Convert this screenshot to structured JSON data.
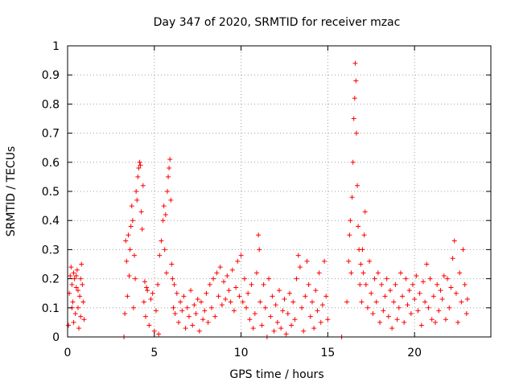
{
  "chart_data": {
    "type": "scatter",
    "title": "Day 347 of 2020, SRMTID for receiver mzac",
    "xlabel": "GPS time / hours",
    "ylabel": "SRMTID / TECUs",
    "xlim": [
      0,
      24.4
    ],
    "ylim": [
      0,
      1
    ],
    "x_ticks": [
      0,
      5,
      10,
      15,
      20
    ],
    "y_ticks": [
      0,
      0.1,
      0.2,
      0.3,
      0.4,
      0.5,
      0.6,
      0.7,
      0.8,
      0.9,
      1
    ],
    "x_tick_labels": [
      "0",
      "5",
      "10",
      "15",
      "20"
    ],
    "y_tick_labels": [
      "0",
      "0.1",
      "0.2",
      "0.3",
      "0.4",
      "0.5",
      "0.6",
      "0.7",
      "0.8",
      "0.9",
      "1"
    ],
    "grid": true,
    "marker": "+",
    "color": "#ff0000",
    "series": [
      {
        "name": "SRMTID",
        "points": [
          [
            0.05,
            0.04
          ],
          [
            0.1,
            0.15
          ],
          [
            0.15,
            0.21
          ],
          [
            0.2,
            0.24
          ],
          [
            0.25,
            0.18
          ],
          [
            0.3,
            0.12
          ],
          [
            0.35,
            0.22
          ],
          [
            0.4,
            0.2
          ],
          [
            0.45,
            0.08
          ],
          [
            0.5,
            0.17
          ],
          [
            0.55,
            0.23
          ],
          [
            0.6,
            0.1
          ],
          [
            0.65,
            0.03
          ],
          [
            0.7,
            0.14
          ],
          [
            0.75,
            0.2
          ],
          [
            0.8,
            0.25
          ],
          [
            0.85,
            0.18
          ],
          [
            0.9,
            0.12
          ],
          [
            0.95,
            0.06
          ],
          [
            0.25,
            0.1
          ],
          [
            0.35,
            0.05
          ],
          [
            0.5,
            0.21
          ],
          [
            0.6,
            0.16
          ],
          [
            0.75,
            0.07
          ],
          [
            3.25,
            0.0
          ],
          [
            3.3,
            0.08
          ],
          [
            3.35,
            0.33
          ],
          [
            3.4,
            0.26
          ],
          [
            3.45,
            0.14
          ],
          [
            3.5,
            0.35
          ],
          [
            3.55,
            0.21
          ],
          [
            3.6,
            0.3
          ],
          [
            3.65,
            0.38
          ],
          [
            3.7,
            0.45
          ],
          [
            3.75,
            0.4
          ],
          [
            3.8,
            0.1
          ],
          [
            3.85,
            0.28
          ],
          [
            3.9,
            0.2
          ],
          [
            3.95,
            0.5
          ],
          [
            4.0,
            0.47
          ],
          [
            4.05,
            0.55
          ],
          [
            4.1,
            0.58
          ],
          [
            4.15,
            0.6
          ],
          [
            4.2,
            0.59
          ],
          [
            4.25,
            0.43
          ],
          [
            4.3,
            0.37
          ],
          [
            4.35,
            0.52
          ],
          [
            4.4,
            0.12
          ],
          [
            4.45,
            0.19
          ],
          [
            4.5,
            0.07
          ],
          [
            4.55,
            0.17
          ],
          [
            4.6,
            0.16
          ],
          [
            4.7,
            0.04
          ],
          [
            4.8,
            0.13
          ],
          [
            4.9,
            0.15
          ],
          [
            5.0,
            0.02
          ],
          [
            5.1,
            0.09
          ],
          [
            5.2,
            0.18
          ],
          [
            5.25,
            0.01
          ],
          [
            5.3,
            0.28
          ],
          [
            5.4,
            0.33
          ],
          [
            5.5,
            0.4
          ],
          [
            5.55,
            0.45
          ],
          [
            5.6,
            0.3
          ],
          [
            5.65,
            0.42
          ],
          [
            5.7,
            0.22
          ],
          [
            5.75,
            0.5
          ],
          [
            5.8,
            0.55
          ],
          [
            5.85,
            0.58
          ],
          [
            5.9,
            0.61
          ],
          [
            5.95,
            0.47
          ],
          [
            6.0,
            0.25
          ],
          [
            6.05,
            0.2
          ],
          [
            6.1,
            0.1
          ],
          [
            6.15,
            0.18
          ],
          [
            6.2,
            0.08
          ],
          [
            6.3,
            0.15
          ],
          [
            6.4,
            0.05
          ],
          [
            6.5,
            0.12
          ],
          [
            6.6,
            0.09
          ],
          [
            6.7,
            0.14
          ],
          [
            6.8,
            0.03
          ],
          [
            6.9,
            0.1
          ],
          [
            7.0,
            0.07
          ],
          [
            7.1,
            0.16
          ],
          [
            7.2,
            0.04
          ],
          [
            7.3,
            0.11
          ],
          [
            7.4,
            0.08
          ],
          [
            7.5,
            0.13
          ],
          [
            7.6,
            0.02
          ],
          [
            7.7,
            0.12
          ],
          [
            7.8,
            0.06
          ],
          [
            7.9,
            0.09
          ],
          [
            8.0,
            0.15
          ],
          [
            8.1,
            0.05
          ],
          [
            8.2,
            0.18
          ],
          [
            8.3,
            0.1
          ],
          [
            8.4,
            0.2
          ],
          [
            8.5,
            0.07
          ],
          [
            8.6,
            0.22
          ],
          [
            8.7,
            0.14
          ],
          [
            8.8,
            0.24
          ],
          [
            8.9,
            0.11
          ],
          [
            9.0,
            0.19
          ],
          [
            9.1,
            0.13
          ],
          [
            9.2,
            0.21
          ],
          [
            9.3,
            0.16
          ],
          [
            9.4,
            0.12
          ],
          [
            9.5,
            0.23
          ],
          [
            9.6,
            0.09
          ],
          [
            9.7,
            0.17
          ],
          [
            9.8,
            0.26
          ],
          [
            9.9,
            0.14
          ],
          [
            10.0,
            0.28
          ],
          [
            10.1,
            0.12
          ],
          [
            10.2,
            0.2
          ],
          [
            10.3,
            0.1
          ],
          [
            10.4,
            0.15
          ],
          [
            10.5,
            0.06
          ],
          [
            10.6,
            0.18
          ],
          [
            10.7,
            0.03
          ],
          [
            10.8,
            0.08
          ],
          [
            10.9,
            0.22
          ],
          [
            11.0,
            0.35
          ],
          [
            11.05,
            0.3
          ],
          [
            11.1,
            0.12
          ],
          [
            11.2,
            0.04
          ],
          [
            11.3,
            0.18
          ],
          [
            11.4,
            0.1
          ],
          [
            11.5,
            0.0
          ],
          [
            11.6,
            0.2
          ],
          [
            11.7,
            0.07
          ],
          [
            11.8,
            0.14
          ],
          [
            11.9,
            0.02
          ],
          [
            12.0,
            0.11
          ],
          [
            12.1,
            0.05
          ],
          [
            12.2,
            0.16
          ],
          [
            12.3,
            0.03
          ],
          [
            12.4,
            0.09
          ],
          [
            12.5,
            0.13
          ],
          [
            12.6,
            0.01
          ],
          [
            12.7,
            0.08
          ],
          [
            12.8,
            0.15
          ],
          [
            12.9,
            0.04
          ],
          [
            13.0,
            0.12
          ],
          [
            13.1,
            0.06
          ],
          [
            13.2,
            0.2
          ],
          [
            13.3,
            0.28
          ],
          [
            13.4,
            0.24
          ],
          [
            13.5,
            0.1
          ],
          [
            13.6,
            0.02
          ],
          [
            13.7,
            0.14
          ],
          [
            13.8,
            0.26
          ],
          [
            13.9,
            0.18
          ],
          [
            14.0,
            0.07
          ],
          [
            14.1,
            0.12
          ],
          [
            14.2,
            0.03
          ],
          [
            14.3,
            0.16
          ],
          [
            14.4,
            0.09
          ],
          [
            14.5,
            0.22
          ],
          [
            14.6,
            0.05
          ],
          [
            14.7,
            0.11
          ],
          [
            14.8,
            0.26
          ],
          [
            14.9,
            0.14
          ],
          [
            15.0,
            0.06
          ],
          [
            15.8,
            0.0
          ],
          [
            16.1,
            0.12
          ],
          [
            16.2,
            0.26
          ],
          [
            16.25,
            0.35
          ],
          [
            16.3,
            0.4
          ],
          [
            16.35,
            0.22
          ],
          [
            16.4,
            0.48
          ],
          [
            16.45,
            0.6
          ],
          [
            16.5,
            0.75
          ],
          [
            16.55,
            0.82
          ],
          [
            16.58,
            0.94
          ],
          [
            16.62,
            0.88
          ],
          [
            16.65,
            0.7
          ],
          [
            16.7,
            0.52
          ],
          [
            16.75,
            0.38
          ],
          [
            16.8,
            0.3
          ],
          [
            16.85,
            0.18
          ],
          [
            16.9,
            0.25
          ],
          [
            16.95,
            0.12
          ],
          [
            17.0,
            0.3
          ],
          [
            17.05,
            0.22
          ],
          [
            17.1,
            0.35
          ],
          [
            17.15,
            0.43
          ],
          [
            17.2,
            0.18
          ],
          [
            17.3,
            0.1
          ],
          [
            17.4,
            0.26
          ],
          [
            17.5,
            0.15
          ],
          [
            17.6,
            0.08
          ],
          [
            17.7,
            0.2
          ],
          [
            17.8,
            0.12
          ],
          [
            17.9,
            0.22
          ],
          [
            18.0,
            0.05
          ],
          [
            18.1,
            0.18
          ],
          [
            18.2,
            0.09
          ],
          [
            18.3,
            0.14
          ],
          [
            18.4,
            0.2
          ],
          [
            18.5,
            0.07
          ],
          [
            18.6,
            0.16
          ],
          [
            18.7,
            0.03
          ],
          [
            18.8,
            0.12
          ],
          [
            18.9,
            0.18
          ],
          [
            19.0,
            0.06
          ],
          [
            19.1,
            0.1
          ],
          [
            19.2,
            0.22
          ],
          [
            19.3,
            0.14
          ],
          [
            19.4,
            0.05
          ],
          [
            19.5,
            0.2
          ],
          [
            19.6,
            0.11
          ],
          [
            19.7,
            0.16
          ],
          [
            19.8,
            0.08
          ],
          [
            19.9,
            0.18
          ],
          [
            20.0,
            0.13
          ],
          [
            20.1,
            0.21
          ],
          [
            20.2,
            0.09
          ],
          [
            20.3,
            0.15
          ],
          [
            20.4,
            0.04
          ],
          [
            20.5,
            0.19
          ],
          [
            20.6,
            0.12
          ],
          [
            20.7,
            0.25
          ],
          [
            20.8,
            0.1
          ],
          [
            20.9,
            0.2
          ],
          [
            21.0,
            0.06
          ],
          [
            21.1,
            0.14
          ],
          [
            21.2,
            0.05
          ],
          [
            21.3,
            0.18
          ],
          [
            21.4,
            0.09
          ],
          [
            21.5,
            0.16
          ],
          [
            21.6,
            0.13
          ],
          [
            21.7,
            0.21
          ],
          [
            21.8,
            0.06
          ],
          [
            21.9,
            0.2
          ],
          [
            22.0,
            0.1
          ],
          [
            22.1,
            0.17
          ],
          [
            22.2,
            0.27
          ],
          [
            22.3,
            0.33
          ],
          [
            22.4,
            0.15
          ],
          [
            22.5,
            0.05
          ],
          [
            22.6,
            0.22
          ],
          [
            22.7,
            0.12
          ],
          [
            22.8,
            0.3
          ],
          [
            22.9,
            0.18
          ],
          [
            23.0,
            0.08
          ],
          [
            23.05,
            0.13
          ]
        ]
      }
    ]
  }
}
